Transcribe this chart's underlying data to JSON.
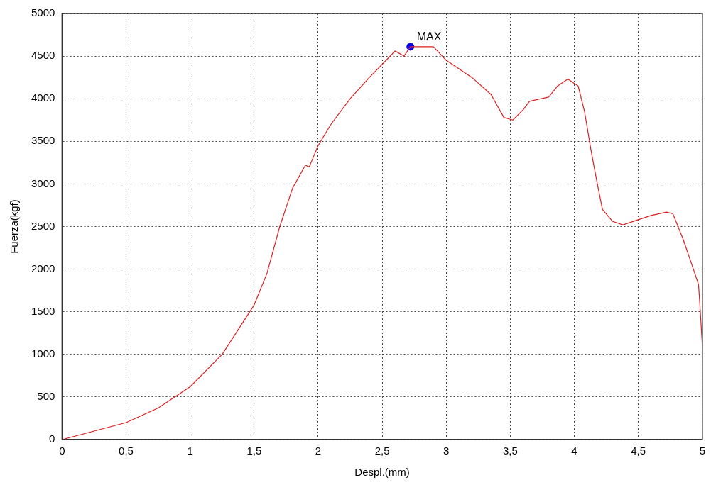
{
  "chart_data": {
    "type": "line",
    "xlabel": "Despl.(mm)",
    "ylabel": "Fuerza(kgf)",
    "xlim": [
      0,
      5
    ],
    "ylim": [
      0,
      5000
    ],
    "xticks": [
      0,
      {
        "value": 0.5,
        "label": "0,5"
      },
      1,
      {
        "value": 1.5,
        "label": "1,5"
      },
      2,
      {
        "value": 2.5,
        "label": "2,5"
      },
      3,
      {
        "value": 3.5,
        "label": "3,5"
      },
      4,
      {
        "value": 4.5,
        "label": "4,5"
      },
      5
    ],
    "yticks": [
      0,
      500,
      1000,
      1500,
      2000,
      2500,
      3000,
      3500,
      4000,
      4500,
      5000
    ],
    "grid": true,
    "legend": false,
    "marker": "none",
    "line_style": "solid",
    "annotations": [
      {
        "text": "MAX",
        "x": 2.72,
        "y": 4610
      }
    ],
    "series": [
      {
        "type": "line",
        "color": "#dd2020",
        "x": [
          0,
          0.25,
          0.5,
          0.75,
          1,
          1.25,
          1.5,
          1.6,
          1.7,
          1.8,
          1.9,
          1.93,
          2,
          2.1,
          2.25,
          2.4,
          2.55,
          2.6,
          2.67,
          2.72,
          2.9,
          3,
          3.2,
          3.35,
          3.45,
          3.52,
          3.6,
          3.65,
          3.8,
          3.87,
          3.95,
          4.03,
          4.08,
          4.13,
          4.18,
          4.22,
          4.3,
          4.38,
          4.5,
          4.6,
          4.72,
          4.77,
          4.85,
          4.93,
          4.97,
          4.98,
          5
        ],
        "values": [
          0,
          100,
          200,
          370,
          620,
          1000,
          1580,
          1950,
          2500,
          2950,
          3220,
          3200,
          3450,
          3700,
          4000,
          4250,
          4480,
          4560,
          4500,
          4610,
          4610,
          4450,
          4250,
          4050,
          3780,
          3750,
          3870,
          3970,
          4020,
          4150,
          4230,
          4150,
          3850,
          3400,
          3000,
          2700,
          2560,
          2520,
          2580,
          2630,
          2670,
          2650,
          2350,
          2000,
          1820,
          1600,
          1100
        ]
      },
      {
        "type": "scatter",
        "color": "#0000ee",
        "marker": "circle",
        "x": [
          2.72
        ],
        "values": [
          4610
        ]
      }
    ]
  }
}
